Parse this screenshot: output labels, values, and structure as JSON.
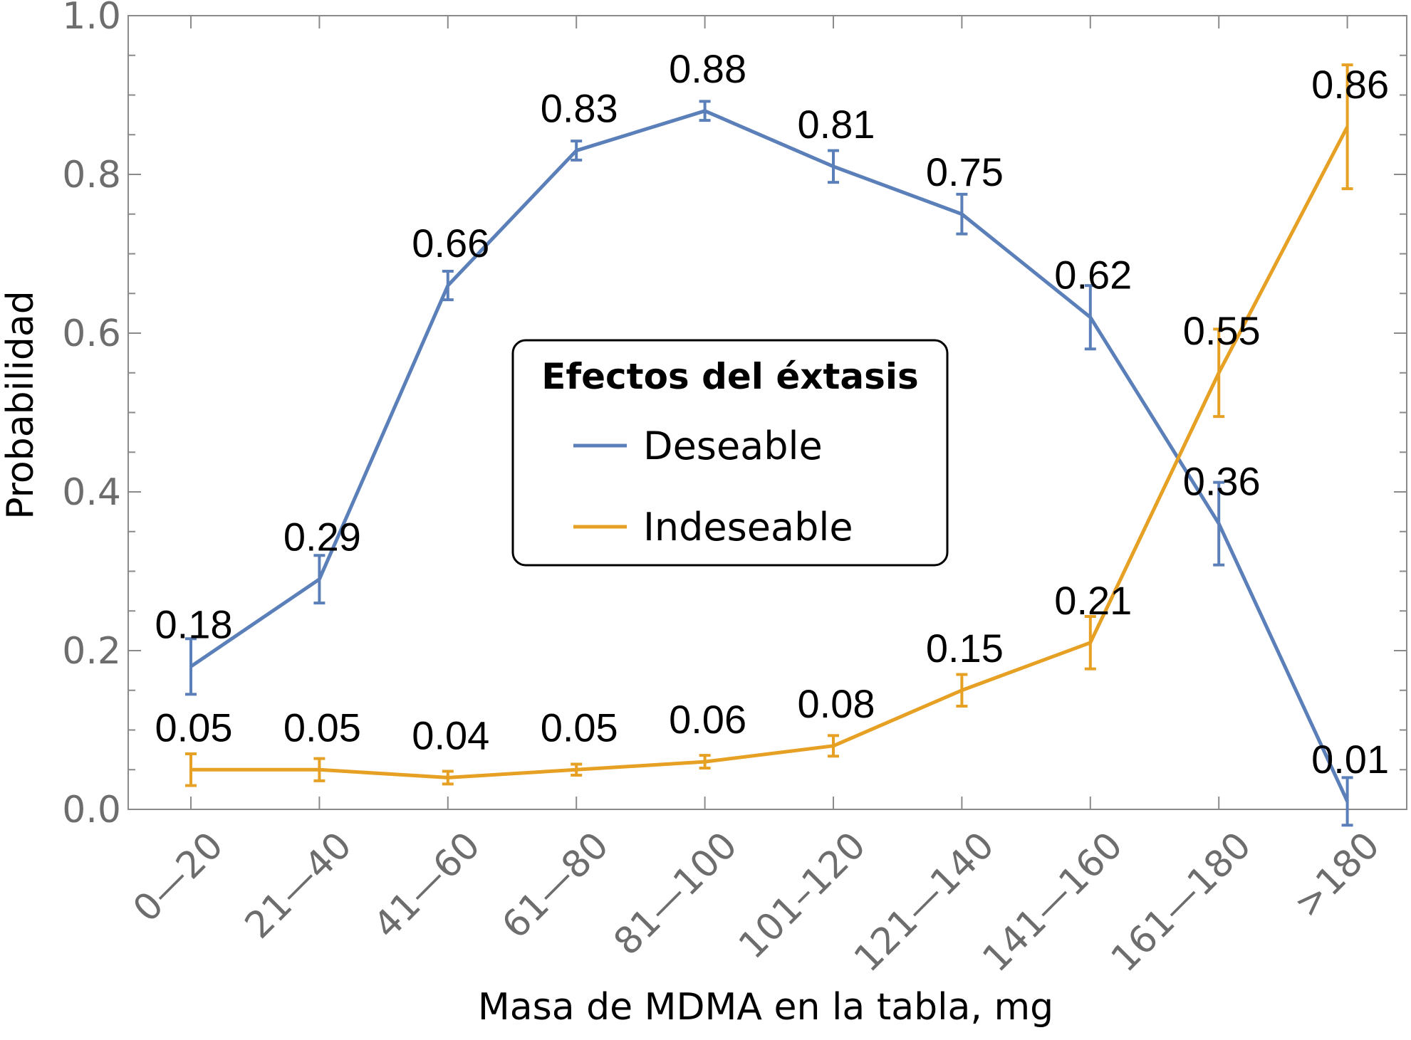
{
  "chart_data": {
    "type": "line",
    "xlabel": "Masa de MDMA en la tabla, mg",
    "ylabel": "Probabilidad",
    "ylim": [
      0,
      1
    ],
    "yticks": [
      "0.0",
      "0.2",
      "0.4",
      "0.6",
      "0.8",
      "1.0"
    ],
    "categories": [
      "0—20",
      "21—40",
      "41—60",
      "61—80",
      "81—100",
      "101–120",
      "121—140",
      "141—160",
      "161—180",
      ">180"
    ],
    "legend": {
      "title": "Efectos del éxtasis",
      "position": "center"
    },
    "series": [
      {
        "name": "Deseable",
        "color": "#5b7fb8",
        "values": [
          0.18,
          0.29,
          0.66,
          0.83,
          0.88,
          0.81,
          0.75,
          0.62,
          0.36,
          0.01
        ],
        "labels": [
          "0.18",
          "0.29",
          "0.66",
          "0.83",
          "0.88",
          "0.81",
          "0.75",
          "0.62",
          "0.36",
          "0.01"
        ],
        "error": [
          0.035,
          0.03,
          0.018,
          0.012,
          0.012,
          0.02,
          0.025,
          0.04,
          0.052,
          0.03
        ]
      },
      {
        "name": "Indeseable",
        "color": "#e6a023",
        "values": [
          0.05,
          0.05,
          0.04,
          0.05,
          0.06,
          0.08,
          0.15,
          0.21,
          0.55,
          0.86
        ],
        "labels": [
          "0.05",
          "0.05",
          "0.04",
          "0.05",
          "0.06",
          "0.08",
          "0.15",
          "0.21",
          "0.55",
          "0.86"
        ],
        "error": [
          0.02,
          0.014,
          0.008,
          0.007,
          0.008,
          0.013,
          0.02,
          0.033,
          0.055,
          0.078
        ]
      }
    ]
  }
}
